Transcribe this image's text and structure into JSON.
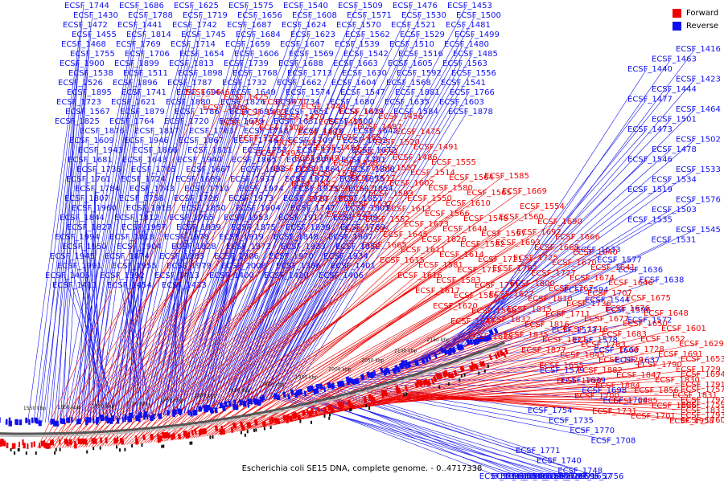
{
  "caption": "Escherichia coli SE15 DNA, complete genome. - 0..4717338",
  "legend": [
    {
      "label": "Forward",
      "color": "#ee0000"
    },
    {
      "label": "Reverse",
      "color": "#1010ee"
    }
  ],
  "colors": {
    "forward": "#ee0000",
    "reverse": "#1010ee",
    "backbone": "#555555"
  },
  "scale_ticks": [
    "1550 kbp",
    "1600 kbp",
    "1650 kbp",
    "1700 kbp",
    "1750 kbp",
    "1800 kbp",
    "1850 kbp",
    "1900 kbp",
    "1950 kbp",
    "2000 kbp",
    "2050 kbp",
    "2100 kbp",
    "2150 kbp"
  ],
  "reverse_labels": [
    "ECSF_1744",
    "ECSF_1686",
    "ECSF_1625",
    "ECSF_1575",
    "ECSF_1540",
    "ECSF_1509",
    "ECSF_1476",
    "ECSF_1453",
    "ECSF_1430",
    "ECSF_1788",
    "ECSF_1719",
    "ECSF_1656",
    "ECSF_1608",
    "ECSF_1571",
    "ECSF_1530",
    "ECSF_1500",
    "ECSF_1472",
    "ECSF_1441",
    "ECSF_1742",
    "ECSF_1687",
    "ECSF_1624",
    "ECSF_1570",
    "ECSF_1521",
    "ECSF_1481",
    "ECSF_1455",
    "ECSF_1814",
    "ECSF_1745",
    "ECSF_1684",
    "ECSF_1623",
    "ECSF_1562",
    "ECSF_1529",
    "ECSF_1499",
    "ECSF_1468",
    "ECSF_1769",
    "ECSF_1714",
    "ECSF_1659",
    "ECSF_1607",
    "ECSF_1539",
    "ECSF_1510",
    "ECSF_1480",
    "ECSF_1755",
    "ECSF_1706",
    "ECSF_1654",
    "ECSF_1606",
    "ECSF_1569",
    "ECSF_1542",
    "ECSF_1516",
    "ECSF_1485",
    "ECSF_1900",
    "ECSF_1899",
    "ECSF_1813",
    "ECSF_1739",
    "ECSF_1688",
    "ECSF_1663",
    "ECSF_1605",
    "ECSF_1563",
    "ECSF_1538",
    "ECSF_1511",
    "ECSF_1898",
    "ECSF_1768",
    "ECSF_1713",
    "ECSF_1630",
    "ECSF_1592",
    "ECSF_1556",
    "ECSF_1526",
    "ECSF_1896",
    "ECSF_1787",
    "ECSF_1732",
    "ECSF_1662",
    "ECSF_1604",
    "ECSF_1568",
    "ECSF_1541",
    "ECSF_1895",
    "ECSF_1741",
    "ECSF_1696",
    "ECSF_1649",
    "ECSF_1574",
    "ECSF_1547",
    "ECSF_1881",
    "ECSF_1766",
    "ECSF_1723",
    "ECSF_1621",
    "ECSF_1880",
    "ECSF_1826",
    "ECSF_1734",
    "ECSF_1680",
    "ECSF_1635",
    "ECSF_1603",
    "ECSF_1567",
    "ECSF_1879",
    "ECSF_1786",
    "ECSF_1695",
    "ECSF_1651",
    "ECSF_1619",
    "ECSF_1584",
    "ECSF_1878",
    "ECSF_1825",
    "ECSF_1764",
    "ECSF_1720",
    "ECSF_1679",
    "ECSF_1631",
    "ECSF_1600",
    "ECSF_1876",
    "ECSF_1817",
    "ECSF_1763",
    "ECSF_1718",
    "ECSF_1678",
    "ECSF_1642",
    "ECSF_1609",
    "ECSF_1946",
    "ECSF_1867",
    "ECSF_1746",
    "ECSF_1709",
    "ECSF_1632",
    "ECSF_1943",
    "ECSF_1866",
    "ECSF_1811",
    "ECSF_1753",
    "ECSF_1715",
    "ECSF_1672",
    "ECSF_1681",
    "ECSF_1643",
    "ECSF_1940",
    "ECSF_1865",
    "ECSF_1809",
    "ECSF_1781",
    "ECSF_1736",
    "ECSF_1705",
    "ECSF_1667",
    "ECSF_1938",
    "ECSF_1864",
    "ECSF_1808",
    "ECSF_1761",
    "ECSF_1724",
    "ECSF_1689",
    "ECSF_1937",
    "ECSF_1927",
    "ECSF_1855",
    "ECSF_1784",
    "ECSF_1743",
    "ECSF_1710",
    "ECSF_1974",
    "ECSF_1925",
    "ECSF_1854",
    "ECSF_1807",
    "ECSF_1758",
    "ECSF_1726",
    "ECSF_1973",
    "ECSF_1920",
    "ECSF_1851",
    "ECSF_1960",
    "ECSF_1918",
    "ECSF_1850",
    "ECSF_1804",
    "ECSF_1747",
    "ECSF_1905",
    "ECSF_1844",
    "ECSF_1812",
    "ECSF_1765",
    "ECSF_1953",
    "ECSF_1917",
    "ECSF_1849",
    "ECSF_1827",
    "ECSF_1957",
    "ECSF_1939",
    "ECSF_1875",
    "ECSF_1839",
    "ECSF_1789",
    "ECSF_1994",
    "ECSF_1818",
    "ECSF_1978",
    "ECSF_1919",
    "ECSF_1848",
    "ECSF_1987",
    "ECSF_1950",
    "ECSF_1904",
    "ECSF_1828",
    "ECSF_1972",
    "ECSF_1933",
    "ECSF_1852",
    "ECSF_1945",
    "ECSF_1874",
    "ECSF_1983",
    "ECSF_1906",
    "ECSF_1970",
    "ECSF_1934",
    "ECSF_1991",
    "ECSF_1955",
    "ECSF_1979",
    "ECSF_2008",
    "ECSF_1386",
    "ECSF_1401",
    "ECSF_1405",
    "ECSF_1392",
    "ECSF_1413",
    "ECSF_1400",
    "ECSF_1420",
    "ECSF_1406",
    "ECSF_1411",
    "ECSF_1454",
    "ECSF_1433",
    "ECSF_1416",
    "ECSF_1463",
    "ECSF_1440",
    "ECSF_1423",
    "ECSF_1444",
    "ECSF_1477",
    "ECSF_1464",
    "ECSF_1501",
    "ECSF_1473",
    "ECSF_1502",
    "ECSF_1478",
    "ECSF_1546",
    "ECSF_1533",
    "ECSF_1534",
    "ECSF_1519",
    "ECSF_1576",
    "ECSF_1503",
    "ECSF_1535",
    "ECSF_1545",
    "ECSF_1531",
    "ECSF_1633",
    "ECSF_1577",
    "ECSF_1636",
    "ECSF_1638",
    "ECSF_1594",
    "ECSF_1544",
    "ECSF_1596",
    "ECSF_1572",
    "ECSF_1573",
    "ECSF_1578",
    "ECSF_1660",
    "ECSF_1637",
    "ECSF_1579",
    "ECSF_1639",
    "ECSF_1698",
    "ECSF_1704",
    "ECSF_1754",
    "ECSF_1735",
    "ECSF_1770",
    "ECSF_1708",
    "ECSF_1771",
    "ECSF_1740",
    "ECSF_1748",
    "ECSF_1756",
    "ECSF_1733",
    "ECSF_1697",
    "ECSF_1699",
    "ECSF_1657",
    "ECSF_1658",
    "ECSF_1661",
    "ECSF_1662",
    "ECSF_1595",
    "ECSF_1926",
    "ECSF_1928",
    "ECSF_1929",
    "ECSF_1961"
  ],
  "forward_labels": [
    "ECSF_1446",
    "ECSF_1425",
    "ECSF_1471",
    "ECSF_1448",
    "ECSF_1431",
    "ECSF_1456",
    "ECSF_1436",
    "ECSF_1482",
    "ECSF_1470",
    "ECSF_1451",
    "ECSF_1487",
    "ECSF_1475",
    "ECSF_1457",
    "ECSF_1508",
    "ECSF_1483",
    "ECSF_1465",
    "ECSF_1520",
    "ECSF_1491",
    "ECSF_1527",
    "ECSF_1512",
    "ECSF_1484",
    "ECSF_1551",
    "ECSF_1486",
    "ECSF_1555",
    "ECSF_1493",
    "ECSF_1549",
    "ECSF_1528",
    "ECSF_1557",
    "ECSF_1514",
    "ECSF_1564",
    "ECSF_1558",
    "ECSF_1536",
    "ECSF_1517",
    "ECSF_1602",
    "ECSF_1580",
    "ECSF_1565",
    "ECSF_1522",
    "ECSF_1612",
    "ECSF_1593",
    "ECSF_1550",
    "ECSF_1610",
    "ECSF_1585",
    "ECSF_1559",
    "ECSF_1537",
    "ECSF_1613",
    "ECSF_1566",
    "ECSF_1548",
    "ECSF_1669",
    "ECSF_1622",
    "ECSF_1552",
    "ECSF_1673",
    "ECSF_1644",
    "ECSF_1597",
    "ECSF_1554",
    "ECSF_1685",
    "ECSF_1645",
    "ECSF_1626",
    "ECSF_1582",
    "ECSF_1560",
    "ECSF_1690",
    "ECSF_1665",
    "ECSF_1611",
    "ECSF_1614",
    "ECSF_1721",
    "ECSF_1692",
    "ECSF_1666",
    "ECSF_1615",
    "ECSF_1581",
    "ECSF_1722",
    "ECSF_1693",
    "ECSF_1668",
    "ECSF_1640",
    "ECSF_1616",
    "ECSF_1583",
    "ECSF_1751",
    "ECSF_1725",
    "ECSF_1670",
    "ECSF_1641",
    "ECSF_1617",
    "ECSF_1586",
    "ECSF_1762",
    "ECSF_1727",
    "ECSF_1674",
    "ECSF_1646",
    "ECSF_1620",
    "ECSF_1590",
    "ECSF_1800",
    "ECSF_1767",
    "ECSF_1707",
    "ECSF_1675",
    "ECSF_1647",
    "ECSF_1627",
    "ECSF_1810",
    "ECSF_1736",
    "ECSF_1676",
    "ECSF_1648",
    "ECSF_1628",
    "ECSF_1815",
    "ECSF_1711",
    "ECSF_1677",
    "ECSF_1650",
    "ECSF_1601",
    "ECSF_1832",
    "ECSF_1816",
    "ECSF_1716",
    "ECSF_1683",
    "ECSF_1652",
    "ECSF_1629",
    "ECSF_1835",
    "ECSF_1821",
    "ECSF_1783",
    "ECSF_1728",
    "ECSF_1691",
    "ECSF_1653",
    "ECSF_1877",
    "ECSF_1845",
    "ECSF_1829",
    "ECSF_1790",
    "ECSF_1729",
    "ECSF_1694",
    "ECSF_1655",
    "ECSF_1882",
    "ECSF_1847",
    "ECSF_1830",
    "ECSF_1791",
    "ECSF_1757",
    "ECSF_1730",
    "ECSF_1884",
    "ECSF_1856",
    "ECSF_1831",
    "ECSF_1792",
    "ECSF_1759",
    "ECSF_1700",
    "ECSF_1885",
    "ECSF_1886",
    "ECSF_1833",
    "ECSF_1793",
    "ECSF_1760",
    "ECSF_1731",
    "ECSF_1701",
    "ECSF_1958"
  ]
}
